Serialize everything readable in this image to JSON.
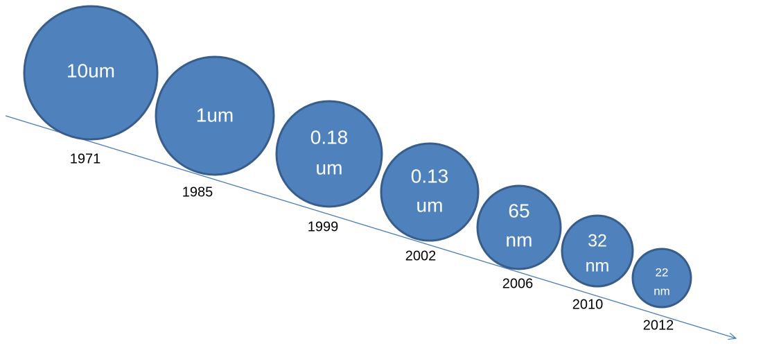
{
  "nodes": [
    {
      "label": [
        "10um"
      ],
      "year": "1971"
    },
    {
      "label": [
        "1um"
      ],
      "year": "1985"
    },
    {
      "label": [
        "0.18",
        "um"
      ],
      "year": "1999"
    },
    {
      "label": [
        "0.13",
        "um"
      ],
      "year": "2002"
    },
    {
      "label": [
        "65",
        "nm"
      ],
      "year": "2006"
    },
    {
      "label": [
        "32",
        "nm"
      ],
      "year": "2010"
    },
    {
      "label": [
        "22",
        "nm"
      ],
      "year": "2012"
    }
  ]
}
